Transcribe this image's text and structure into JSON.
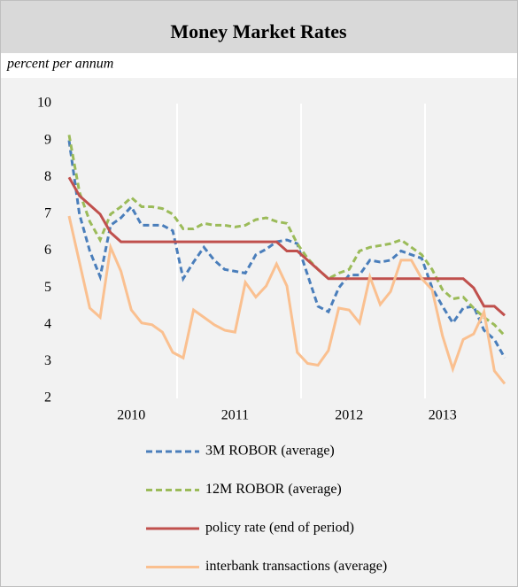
{
  "chart_data": {
    "type": "line",
    "title": "Money Market Rates",
    "subtitle": "percent per annum",
    "categories": [
      null,
      null,
      null,
      null,
      null,
      null,
      "2010",
      null,
      null,
      null,
      null,
      null,
      null,
      null,
      null,
      null,
      "2011",
      null,
      null,
      null,
      null,
      null,
      null,
      null,
      null,
      null,
      null,
      "2012",
      null,
      null,
      null,
      null,
      null,
      null,
      null,
      null,
      "2013",
      null,
      null,
      null,
      null,
      null,
      null
    ],
    "ylim": [
      2,
      10
    ],
    "yticks": [
      2,
      3,
      4,
      5,
      6,
      7,
      8,
      9,
      10
    ],
    "legend": "bottom",
    "series": [
      {
        "name": "3M ROBOR (average)",
        "color": "#4a7ebb",
        "dash": true,
        "values": [
          9.0,
          7.0,
          6.0,
          5.3,
          6.7,
          6.9,
          7.2,
          6.7,
          6.7,
          6.7,
          6.55,
          5.25,
          5.7,
          6.1,
          5.75,
          5.5,
          5.45,
          5.4,
          5.9,
          6.05,
          6.25,
          6.3,
          6.2,
          5.35,
          4.5,
          4.35,
          5.0,
          5.35,
          5.35,
          5.75,
          5.7,
          5.75,
          6.0,
          5.9,
          5.8,
          5.0,
          4.5,
          4.05,
          4.45,
          4.5,
          3.85,
          3.6,
          3.1
        ]
      },
      {
        "name": "12M ROBOR (average)",
        "color": "#9bbb59",
        "dash": true,
        "values": [
          9.15,
          7.6,
          6.8,
          6.3,
          7.0,
          7.2,
          7.45,
          7.2,
          7.2,
          7.15,
          7.0,
          6.6,
          6.6,
          6.75,
          6.7,
          6.7,
          6.65,
          6.7,
          6.85,
          6.9,
          6.8,
          6.75,
          6.2,
          5.8,
          5.5,
          5.25,
          5.4,
          5.5,
          6.0,
          6.1,
          6.15,
          6.2,
          6.3,
          6.1,
          5.9,
          5.5,
          4.95,
          4.7,
          4.75,
          4.45,
          4.2,
          4.0,
          3.7
        ]
      },
      {
        "name": "policy rate (end of period)",
        "color": "#c0504d",
        "dash": false,
        "values": [
          8.0,
          7.5,
          7.25,
          7.0,
          6.5,
          6.25,
          6.25,
          6.25,
          6.25,
          6.25,
          6.25,
          6.25,
          6.25,
          6.25,
          6.25,
          6.25,
          6.25,
          6.25,
          6.25,
          6.25,
          6.25,
          6.0,
          6.0,
          5.75,
          5.5,
          5.25,
          5.25,
          5.25,
          5.25,
          5.25,
          5.25,
          5.25,
          5.25,
          5.25,
          5.25,
          5.25,
          5.25,
          5.25,
          5.25,
          5.0,
          4.5,
          4.5,
          4.25
        ]
      },
      {
        "name": "interbank transactions (average)",
        "color": "#fac090",
        "dash": false,
        "values": [
          6.95,
          5.7,
          4.45,
          4.2,
          6.1,
          5.45,
          4.4,
          4.05,
          4.0,
          3.8,
          3.25,
          3.1,
          4.4,
          4.2,
          4.0,
          3.85,
          3.8,
          5.15,
          4.75,
          5.05,
          5.65,
          5.05,
          3.25,
          2.95,
          2.9,
          3.3,
          4.45,
          4.4,
          4.05,
          5.3,
          4.55,
          4.9,
          5.75,
          5.75,
          5.25,
          4.95,
          3.7,
          2.8,
          3.6,
          3.75,
          4.35,
          2.75,
          2.4
        ]
      }
    ]
  }
}
